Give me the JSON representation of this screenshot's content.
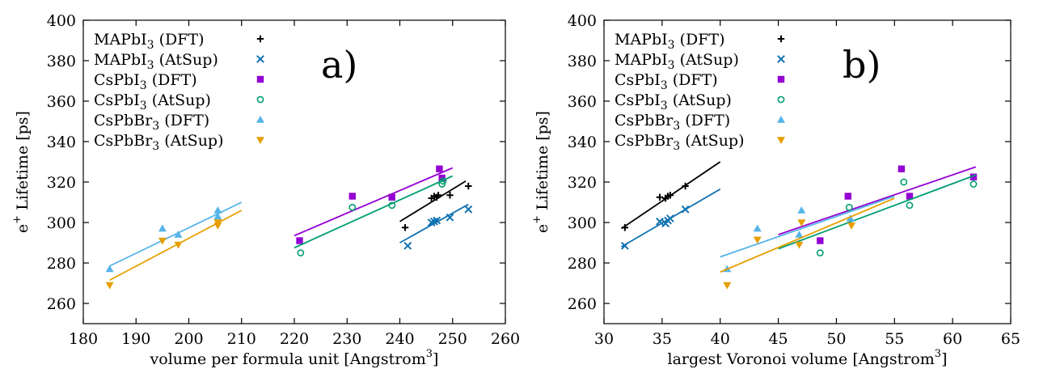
{
  "chart_data": [
    {
      "type": "scatter",
      "panel_label": "a)",
      "xlabel": "volume per formula unit [Angstrom",
      "xlabel_sup": "3",
      "xlabel_end": "]",
      "ylabel": "e",
      "ylabel_sup": "+",
      "ylabel_end": " Lifetime [ps]",
      "xlim": [
        180,
        260
      ],
      "ylim": [
        250,
        400
      ],
      "xticks": [
        180,
        190,
        200,
        210,
        220,
        230,
        240,
        250,
        260
      ],
      "yticks": [
        260,
        280,
        300,
        320,
        340,
        360,
        380,
        400
      ],
      "legend_position": "top-left",
      "series": [
        {
          "name": "MAPbI",
          "sub": "3",
          "suffix": " (DFT)",
          "color": "#000000",
          "marker": "plus",
          "points": [
            [
              241,
              297.5
            ],
            [
              246,
              312
            ],
            [
              246.5,
              313
            ],
            [
              247,
              312.5
            ],
            [
              247.3,
              313.5
            ],
            [
              249.5,
              313.5
            ],
            [
              253,
              318
            ]
          ],
          "fit": [
            [
              240,
              300.5
            ],
            [
              252.5,
              320.5
            ]
          ]
        },
        {
          "name": "MAPbI",
          "sub": "3",
          "suffix": " (AtSup)",
          "color": "#0f72b2",
          "marker": "cross",
          "points": [
            [
              241.5,
              288.5
            ],
            [
              246,
              300
            ],
            [
              246.5,
              300.5
            ],
            [
              247,
              301
            ],
            [
              249.5,
              302.5
            ],
            [
              253,
              306.5
            ]
          ],
          "fit": [
            [
              240,
              290
            ],
            [
              253,
              309
            ]
          ]
        },
        {
          "name": "CsPbI",
          "sub": "3",
          "suffix": " (DFT)",
          "color": "#9400d3",
          "marker": "square",
          "points": [
            [
              221,
              291
            ],
            [
              231,
              313
            ],
            [
              238.5,
              312.5
            ],
            [
              247.5,
              326.5
            ],
            [
              248,
              322
            ]
          ],
          "fit": [
            [
              220,
              293.5
            ],
            [
              250,
              327
            ]
          ]
        },
        {
          "name": "CsPbI",
          "sub": "3",
          "suffix": " (AtSup)",
          "color": "#009e73",
          "marker": "circle",
          "points": [
            [
              221.2,
              285
            ],
            [
              231,
              307.5
            ],
            [
              238.5,
              308.5
            ],
            [
              248,
              319
            ],
            [
              248.2,
              320.5
            ]
          ],
          "fit": [
            [
              220,
              287.5
            ],
            [
              250,
              323
            ]
          ]
        },
        {
          "name": "CsPbBr",
          "sub": "3",
          "suffix": " (DFT)",
          "color": "#56b4e9",
          "marker": "triangle-up",
          "points": [
            [
              185,
              277
            ],
            [
              195,
              297
            ],
            [
              198,
              294
            ],
            [
              205.5,
              306
            ],
            [
              205.5,
              303
            ]
          ],
          "fit": [
            [
              185,
              278.5
            ],
            [
              210,
              310
            ]
          ]
        },
        {
          "name": "CsPbBr",
          "sub": "3",
          "suffix": " (AtSup)",
          "color": "#e69f00",
          "marker": "triangle-down",
          "points": [
            [
              185,
              269
            ],
            [
              195,
              291
            ],
            [
              198,
              289
            ],
            [
              205.5,
              298.5
            ],
            [
              205.5,
              300
            ]
          ],
          "fit": [
            [
              185,
              271.5
            ],
            [
              210,
              306
            ]
          ]
        }
      ]
    },
    {
      "type": "scatter",
      "panel_label": "b)",
      "xlabel": "largest Voronoi volume [Angstrom",
      "xlabel_sup": "3",
      "xlabel_end": "]",
      "ylabel": "e",
      "ylabel_sup": "+",
      "ylabel_end": " Lifetime [ps]",
      "xlim": [
        30,
        65
      ],
      "ylim": [
        250,
        400
      ],
      "xticks": [
        30,
        35,
        40,
        45,
        50,
        55,
        60,
        65
      ],
      "yticks": [
        260,
        280,
        300,
        320,
        340,
        360,
        380,
        400
      ],
      "legend_position": "top-left",
      "series": [
        {
          "name": "MAPbI",
          "sub": "3",
          "suffix": " (DFT)",
          "color": "#000000",
          "marker": "plus",
          "points": [
            [
              31.8,
              297.5
            ],
            [
              34.8,
              312.5
            ],
            [
              35.3,
              312
            ],
            [
              35.5,
              313
            ],
            [
              35.7,
              313.5
            ],
            [
              37,
              318
            ]
          ],
          "fit": [
            [
              31.5,
              297
            ],
            [
              40,
              330
            ]
          ]
        },
        {
          "name": "MAPbI",
          "sub": "3",
          "suffix": " (AtSup)",
          "color": "#0f72b2",
          "marker": "cross",
          "points": [
            [
              31.8,
              288.5
            ],
            [
              34.8,
              300.5
            ],
            [
              35.3,
              299.5
            ],
            [
              35.5,
              301
            ],
            [
              35.7,
              302
            ],
            [
              37,
              306.5
            ]
          ],
          "fit": [
            [
              31.5,
              288
            ],
            [
              40,
              316.5
            ]
          ]
        },
        {
          "name": "CsPbI",
          "sub": "3",
          "suffix": " (DFT)",
          "color": "#9400d3",
          "marker": "square",
          "points": [
            [
              48.6,
              291
            ],
            [
              51,
              313
            ],
            [
              55.6,
              326.5
            ],
            [
              56.3,
              313
            ],
            [
              61.8,
              322.5
            ]
          ],
          "fit": [
            [
              45,
              294
            ],
            [
              62,
              327.5
            ]
          ]
        },
        {
          "name": "CsPbI",
          "sub": "3",
          "suffix": " (AtSup)",
          "color": "#009e73",
          "marker": "circle",
          "points": [
            [
              48.6,
              285
            ],
            [
              51.1,
              307.5
            ],
            [
              55.8,
              320
            ],
            [
              56.3,
              308.5
            ],
            [
              61.8,
              319
            ]
          ],
          "fit": [
            [
              45,
              287
            ],
            [
              62,
              323.5
            ]
          ]
        },
        {
          "name": "CsPbBr",
          "sub": "3",
          "suffix": " (DFT)",
          "color": "#56b4e9",
          "marker": "triangle-up",
          "points": [
            [
              40.6,
              277
            ],
            [
              43.2,
              297
            ],
            [
              46.8,
              294
            ],
            [
              47,
              306
            ],
            [
              51.2,
              302
            ]
          ],
          "fit": [
            [
              40,
              283
            ],
            [
              55,
              313
            ]
          ]
        },
        {
          "name": "CsPbBr",
          "sub": "3",
          "suffix": " (AtSup)",
          "color": "#e69f00",
          "marker": "triangle-down",
          "points": [
            [
              40.6,
              269
            ],
            [
              43.2,
              291.5
            ],
            [
              46.8,
              289
            ],
            [
              47,
              300
            ],
            [
              51.3,
              298.5
            ]
          ],
          "fit": [
            [
              40,
              275.5
            ],
            [
              55,
              312
            ]
          ]
        }
      ]
    }
  ]
}
